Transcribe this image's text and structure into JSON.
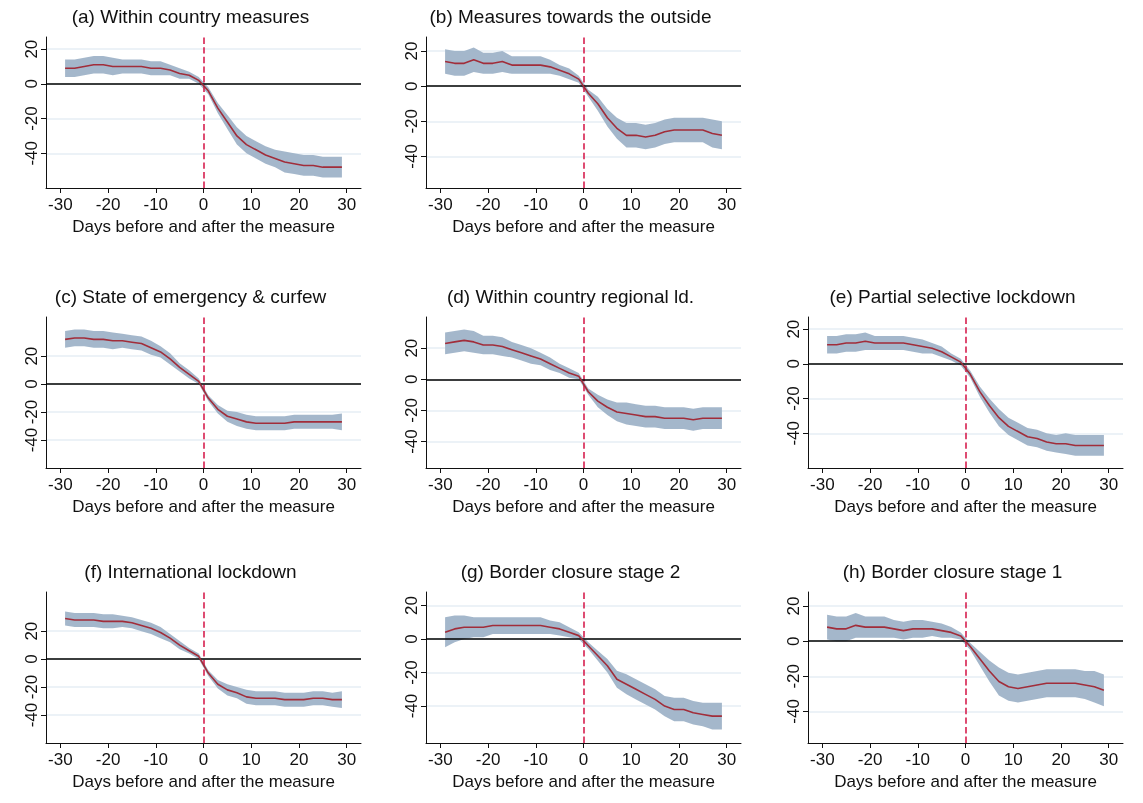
{
  "chart_data": [
    {
      "type": "line",
      "title": "(a) Within country measures",
      "xlabel": "Days before and after the measure",
      "x": [
        -29,
        -27,
        -25,
        -23,
        -21,
        -19,
        -17,
        -15,
        -13,
        -11,
        -9,
        -7,
        -5,
        -3,
        -1,
        1,
        3,
        5,
        7,
        9,
        11,
        13,
        15,
        17,
        19,
        21,
        23,
        25,
        27,
        29
      ],
      "xlim": [
        -33,
        33
      ],
      "xticks": [
        -30,
        -20,
        -10,
        0,
        10,
        20,
        30
      ],
      "ylim": [
        -60,
        27
      ],
      "yticks": [
        -40,
        -20,
        0,
        20
      ],
      "grid": "y",
      "marker": "none",
      "line_style": "solid",
      "ref_lines": [
        {
          "axis": "x",
          "value": 0,
          "color": "#d6204f",
          "line_style": "dashed"
        },
        {
          "axis": "y",
          "value": 0,
          "color": "#000000",
          "line_style": "solid"
        }
      ],
      "series": [
        {
          "color": "#a12d3a",
          "values": [
            9,
            9,
            10,
            11,
            11,
            10,
            10,
            10,
            10,
            9,
            9,
            8,
            6,
            5,
            2,
            -4,
            -14,
            -22,
            -30,
            -35,
            -38,
            -41,
            -43,
            -45,
            -46,
            -47,
            -47,
            -48,
            -48,
            -48
          ],
          "lower": [
            4,
            4,
            5,
            6,
            6,
            5,
            6,
            6,
            6,
            5,
            5,
            5,
            3,
            3,
            0,
            -6,
            -17,
            -26,
            -35,
            -40,
            -43,
            -46,
            -48,
            -51,
            -52,
            -53,
            -53,
            -54,
            -54,
            -54
          ],
          "upper": [
            14,
            14,
            15,
            16,
            16,
            15,
            14,
            14,
            14,
            13,
            13,
            11,
            9,
            7,
            4,
            -2,
            -11,
            -18,
            -25,
            -30,
            -33,
            -36,
            -38,
            -39,
            -40,
            -41,
            -41,
            -42,
            -42,
            -42
          ]
        }
      ]
    },
    {
      "type": "line",
      "title": "(b) Measures towards the outside",
      "xlabel": "Days before and after the measure",
      "x": [
        -29,
        -27,
        -25,
        -23,
        -21,
        -19,
        -17,
        -15,
        -13,
        -11,
        -9,
        -7,
        -5,
        -3,
        -1,
        1,
        3,
        5,
        7,
        9,
        11,
        13,
        15,
        17,
        19,
        21,
        23,
        25,
        27,
        29
      ],
      "xlim": [
        -33,
        33
      ],
      "xticks": [
        -30,
        -20,
        -10,
        0,
        10,
        20,
        30
      ],
      "ylim": [
        -58,
        28
      ],
      "yticks": [
        -40,
        -20,
        0,
        20
      ],
      "grid": "y",
      "marker": "none",
      "line_style": "solid",
      "ref_lines": [
        {
          "axis": "x",
          "value": 0,
          "color": "#d6204f",
          "line_style": "dashed"
        },
        {
          "axis": "y",
          "value": 0,
          "color": "#000000",
          "line_style": "solid"
        }
      ],
      "series": [
        {
          "color": "#a12d3a",
          "values": [
            14,
            13,
            13,
            15,
            13,
            13,
            14,
            12,
            12,
            12,
            12,
            11,
            9,
            7,
            4,
            -4,
            -10,
            -18,
            -24,
            -28,
            -28,
            -29,
            -28,
            -26,
            -25,
            -25,
            -25,
            -25,
            -27,
            -28
          ],
          "lower": [
            7,
            6,
            6,
            8,
            7,
            7,
            8,
            7,
            7,
            7,
            7,
            7,
            6,
            4,
            2,
            -6,
            -14,
            -23,
            -30,
            -35,
            -35,
            -36,
            -35,
            -33,
            -32,
            -32,
            -32,
            -32,
            -35,
            -36
          ],
          "upper": [
            21,
            20,
            20,
            22,
            19,
            19,
            20,
            17,
            17,
            17,
            17,
            15,
            12,
            10,
            6,
            -2,
            -6,
            -13,
            -18,
            -21,
            -21,
            -22,
            -21,
            -19,
            -18,
            -18,
            -18,
            -18,
            -19,
            -20
          ]
        }
      ]
    },
    {
      "type": "line",
      "title": "(c) State of emergency & curfew",
      "xlabel": "Days before and after the measure",
      "x": [
        -29,
        -27,
        -25,
        -23,
        -21,
        -19,
        -17,
        -15,
        -13,
        -11,
        -9,
        -7,
        -5,
        -3,
        -1,
        1,
        3,
        5,
        7,
        9,
        11,
        13,
        15,
        17,
        19,
        21,
        23,
        25,
        27,
        29
      ],
      "xlim": [
        -33,
        33
      ],
      "xticks": [
        -30,
        -20,
        -10,
        0,
        10,
        20,
        30
      ],
      "ylim": [
        -60,
        48
      ],
      "yticks": [
        -40,
        -20,
        0,
        20
      ],
      "grid": "y",
      "marker": "none",
      "line_style": "solid",
      "ref_lines": [
        {
          "axis": "x",
          "value": 0,
          "color": "#d6204f",
          "line_style": "dashed"
        },
        {
          "axis": "y",
          "value": 0,
          "color": "#000000",
          "line_style": "solid"
        }
      ],
      "series": [
        {
          "color": "#a12d3a",
          "values": [
            32,
            33,
            33,
            32,
            32,
            31,
            31,
            30,
            29,
            26,
            23,
            18,
            12,
            7,
            2,
            -10,
            -18,
            -23,
            -25,
            -27,
            -28,
            -28,
            -28,
            -28,
            -27,
            -27,
            -27,
            -27,
            -27,
            -27
          ],
          "lower": [
            26,
            27,
            27,
            26,
            26,
            25,
            26,
            25,
            24,
            21,
            19,
            14,
            9,
            4,
            0,
            -12,
            -21,
            -27,
            -30,
            -32,
            -33,
            -33,
            -33,
            -33,
            -32,
            -32,
            -32,
            -32,
            -32,
            -33
          ],
          "upper": [
            38,
            39,
            39,
            38,
            38,
            37,
            36,
            35,
            34,
            31,
            27,
            22,
            15,
            10,
            4,
            -8,
            -15,
            -19,
            -20,
            -22,
            -23,
            -23,
            -23,
            -23,
            -22,
            -22,
            -22,
            -22,
            -22,
            -21
          ]
        }
      ]
    },
    {
      "type": "line",
      "title": "(d) Within country regional ld.",
      "xlabel": "Days before and after the measure",
      "x": [
        -29,
        -27,
        -25,
        -23,
        -21,
        -19,
        -17,
        -15,
        -13,
        -11,
        -9,
        -7,
        -5,
        -3,
        -1,
        1,
        3,
        5,
        7,
        9,
        11,
        13,
        15,
        17,
        19,
        21,
        23,
        25,
        27,
        29
      ],
      "xlim": [
        -33,
        33
      ],
      "xticks": [
        -30,
        -20,
        -10,
        0,
        10,
        20,
        30
      ],
      "ylim": [
        -57,
        40
      ],
      "yticks": [
        -40,
        -20,
        0,
        20
      ],
      "grid": "y",
      "marker": "none",
      "line_style": "solid",
      "ref_lines": [
        {
          "axis": "x",
          "value": 0,
          "color": "#d6204f",
          "line_style": "dashed"
        },
        {
          "axis": "y",
          "value": 0,
          "color": "#000000",
          "line_style": "solid"
        }
      ],
      "series": [
        {
          "color": "#a12d3a",
          "values": [
            23,
            24,
            25,
            24,
            22,
            22,
            21,
            19,
            17,
            15,
            13,
            10,
            7,
            4,
            2,
            -8,
            -14,
            -18,
            -21,
            -22,
            -23,
            -24,
            -24,
            -25,
            -25,
            -25,
            -26,
            -25,
            -25,
            -25
          ],
          "lower": [
            16,
            17,
            18,
            17,
            16,
            16,
            15,
            14,
            12,
            10,
            9,
            6,
            4,
            1,
            0,
            -10,
            -18,
            -23,
            -27,
            -29,
            -30,
            -31,
            -31,
            -32,
            -32,
            -32,
            -33,
            -32,
            -32,
            -32
          ],
          "upper": [
            30,
            31,
            32,
            31,
            28,
            28,
            27,
            24,
            22,
            20,
            17,
            14,
            10,
            7,
            4,
            -6,
            -10,
            -13,
            -15,
            -15,
            -16,
            -17,
            -17,
            -18,
            -18,
            -18,
            -19,
            -18,
            -18,
            -18
          ]
        }
      ]
    },
    {
      "type": "line",
      "title": "(e) Partial selective lockdown",
      "xlabel": "Days before and after the measure",
      "x": [
        -29,
        -27,
        -25,
        -23,
        -21,
        -19,
        -17,
        -15,
        -13,
        -11,
        -9,
        -7,
        -5,
        -3,
        -1,
        1,
        3,
        5,
        7,
        9,
        11,
        13,
        15,
        17,
        19,
        21,
        23,
        25,
        27,
        29
      ],
      "xlim": [
        -33,
        33
      ],
      "xticks": [
        -30,
        -20,
        -10,
        0,
        10,
        20,
        30
      ],
      "ylim": [
        -60,
        27
      ],
      "yticks": [
        -40,
        -20,
        0,
        20
      ],
      "grid": "y",
      "marker": "none",
      "line_style": "solid",
      "ref_lines": [
        {
          "axis": "x",
          "value": 0,
          "color": "#d6204f",
          "line_style": "dashed"
        },
        {
          "axis": "y",
          "value": 0,
          "color": "#000000",
          "line_style": "solid"
        }
      ],
      "series": [
        {
          "color": "#a12d3a",
          "values": [
            11,
            11,
            12,
            12,
            13,
            12,
            12,
            12,
            12,
            11,
            10,
            9,
            7,
            4,
            1,
            -6,
            -16,
            -24,
            -31,
            -36,
            -39,
            -42,
            -43,
            -45,
            -46,
            -46,
            -47,
            -47,
            -47,
            -47
          ],
          "lower": [
            6,
            6,
            7,
            7,
            8,
            8,
            8,
            8,
            8,
            7,
            6,
            6,
            4,
            2,
            -1,
            -8,
            -19,
            -28,
            -36,
            -41,
            -44,
            -47,
            -48,
            -50,
            -51,
            -52,
            -53,
            -53,
            -53,
            -53
          ],
          "upper": [
            16,
            16,
            17,
            17,
            18,
            16,
            16,
            16,
            16,
            15,
            14,
            12,
            10,
            6,
            3,
            -4,
            -13,
            -20,
            -26,
            -31,
            -34,
            -37,
            -38,
            -40,
            -41,
            -40,
            -41,
            -41,
            -41,
            -41
          ]
        }
      ]
    },
    {
      "type": "line",
      "title": "(f) International lockdown",
      "xlabel": "Days before and after the measure",
      "x": [
        -29,
        -27,
        -25,
        -23,
        -21,
        -19,
        -17,
        -15,
        -13,
        -11,
        -9,
        -7,
        -5,
        -3,
        -1,
        1,
        3,
        5,
        7,
        9,
        11,
        13,
        15,
        17,
        19,
        21,
        23,
        25,
        27,
        29
      ],
      "xlim": [
        -33,
        33
      ],
      "xticks": [
        -30,
        -20,
        -10,
        0,
        10,
        20,
        30
      ],
      "ylim": [
        -60,
        48
      ],
      "yticks": [
        -40,
        -20,
        0,
        20
      ],
      "grid": "y",
      "marker": "none",
      "line_style": "solid",
      "ref_lines": [
        {
          "axis": "x",
          "value": 0,
          "color": "#d6204f",
          "line_style": "dashed"
        },
        {
          "axis": "y",
          "value": 0,
          "color": "#000000",
          "line_style": "solid"
        }
      ],
      "series": [
        {
          "color": "#a12d3a",
          "values": [
            29,
            28,
            28,
            28,
            27,
            27,
            27,
            26,
            24,
            22,
            19,
            15,
            10,
            6,
            2,
            -10,
            -18,
            -22,
            -24,
            -27,
            -28,
            -28,
            -28,
            -29,
            -29,
            -29,
            -28,
            -28,
            -29,
            -29
          ],
          "lower": [
            24,
            23,
            23,
            23,
            22,
            22,
            23,
            22,
            20,
            18,
            15,
            12,
            7,
            4,
            0,
            -12,
            -21,
            -26,
            -28,
            -32,
            -33,
            -33,
            -33,
            -34,
            -34,
            -34,
            -33,
            -33,
            -34,
            -35
          ],
          "upper": [
            34,
            33,
            33,
            33,
            32,
            32,
            31,
            30,
            28,
            26,
            23,
            18,
            13,
            8,
            4,
            -8,
            -15,
            -18,
            -20,
            -22,
            -23,
            -23,
            -23,
            -24,
            -24,
            -24,
            -23,
            -23,
            -24,
            -23
          ]
        }
      ]
    },
    {
      "type": "line",
      "title": "(g) Border closure stage 2",
      "xlabel": "Days before and after the measure",
      "x": [
        -29,
        -27,
        -25,
        -23,
        -21,
        -19,
        -17,
        -15,
        -13,
        -11,
        -9,
        -7,
        -5,
        -3,
        -1,
        1,
        3,
        5,
        7,
        9,
        11,
        13,
        15,
        17,
        19,
        21,
        23,
        25,
        27,
        29
      ],
      "xlim": [
        -33,
        33
      ],
      "xticks": [
        -30,
        -20,
        -10,
        0,
        10,
        20,
        30
      ],
      "ylim": [
        -62,
        28
      ],
      "yticks": [
        -40,
        -20,
        0,
        20
      ],
      "grid": "y",
      "marker": "none",
      "line_style": "solid",
      "ref_lines": [
        {
          "axis": "x",
          "value": 0,
          "color": "#d6204f",
          "line_style": "dashed"
        },
        {
          "axis": "y",
          "value": 0,
          "color": "#000000",
          "line_style": "solid"
        }
      ],
      "series": [
        {
          "color": "#a12d3a",
          "values": [
            4,
            6,
            7,
            7,
            7,
            8,
            8,
            8,
            8,
            8,
            8,
            7,
            6,
            4,
            2,
            -4,
            -10,
            -16,
            -24,
            -27,
            -30,
            -33,
            -36,
            -40,
            -42,
            -42,
            -44,
            -45,
            -46,
            -46
          ],
          "lower": [
            -5,
            -2,
            0,
            1,
            1,
            3,
            3,
            3,
            3,
            3,
            3,
            3,
            2,
            1,
            0,
            -6,
            -13,
            -20,
            -29,
            -33,
            -36,
            -39,
            -42,
            -46,
            -49,
            -49,
            -51,
            -52,
            -54,
            -54
          ],
          "upper": [
            13,
            14,
            14,
            13,
            13,
            13,
            13,
            13,
            13,
            13,
            13,
            11,
            10,
            7,
            4,
            -2,
            -7,
            -12,
            -19,
            -21,
            -24,
            -27,
            -30,
            -34,
            -35,
            -35,
            -37,
            -38,
            -38,
            -38
          ]
        }
      ]
    },
    {
      "type": "line",
      "title": "(h) Border closure stage 1",
      "xlabel": "Days before and after the measure",
      "x": [
        -29,
        -27,
        -25,
        -23,
        -21,
        -19,
        -17,
        -15,
        -13,
        -11,
        -9,
        -7,
        -5,
        -3,
        -1,
        1,
        3,
        5,
        7,
        9,
        11,
        13,
        15,
        17,
        19,
        21,
        23,
        25,
        27,
        29
      ],
      "xlim": [
        -33,
        33
      ],
      "xticks": [
        -30,
        -20,
        -10,
        0,
        10,
        20,
        30
      ],
      "ylim": [
        -58,
        28
      ],
      "yticks": [
        -40,
        -20,
        0,
        20
      ],
      "grid": "y",
      "marker": "none",
      "line_style": "solid",
      "ref_lines": [
        {
          "axis": "x",
          "value": 0,
          "color": "#d6204f",
          "line_style": "dashed"
        },
        {
          "axis": "y",
          "value": 0,
          "color": "#000000",
          "line_style": "solid"
        }
      ],
      "series": [
        {
          "color": "#a12d3a",
          "values": [
            8,
            7,
            7,
            9,
            8,
            8,
            8,
            7,
            6,
            7,
            7,
            7,
            6,
            5,
            3,
            -3,
            -10,
            -17,
            -23,
            -26,
            -27,
            -26,
            -25,
            -24,
            -24,
            -24,
            -24,
            -25,
            -26,
            -28
          ],
          "lower": [
            1,
            0,
            0,
            2,
            2,
            2,
            2,
            2,
            1,
            2,
            2,
            3,
            2,
            2,
            1,
            -5,
            -14,
            -23,
            -31,
            -34,
            -35,
            -34,
            -33,
            -32,
            -32,
            -32,
            -32,
            -33,
            -35,
            -37
          ],
          "upper": [
            15,
            14,
            14,
            16,
            14,
            14,
            14,
            12,
            11,
            12,
            12,
            11,
            10,
            8,
            5,
            -1,
            -6,
            -11,
            -15,
            -18,
            -19,
            -18,
            -17,
            -16,
            -16,
            -16,
            -16,
            -17,
            -17,
            -19
          ]
        }
      ]
    }
  ]
}
